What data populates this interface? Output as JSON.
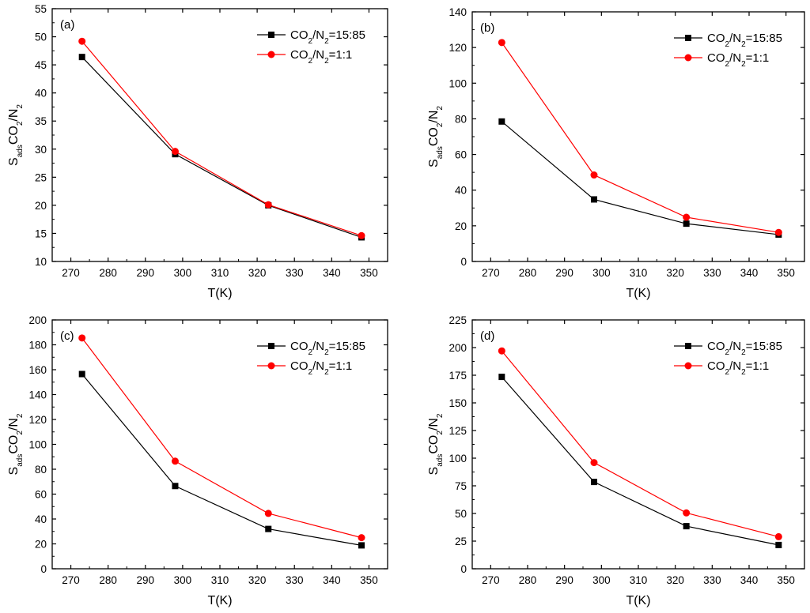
{
  "chart_data": [
    {
      "type": "line",
      "panel_label": "(a)",
      "xlabel": "T(K)",
      "ylabel": {
        "main": "S",
        "sub": "ads",
        "rest": "CO",
        "sub2": "2",
        "rest2": "/N",
        "sub3": "2"
      },
      "xlim": [
        265,
        355
      ],
      "ylim": [
        10,
        55
      ],
      "xticks": [
        270,
        280,
        290,
        300,
        310,
        320,
        330,
        340,
        350
      ],
      "yticks": [
        10,
        15,
        20,
        25,
        30,
        35,
        40,
        45,
        50,
        55
      ],
      "legend_position": "top-right",
      "series": [
        {
          "name": "CO2/N2=15:85",
          "marker": "square",
          "color": "#000000",
          "x": [
            273,
            298,
            323,
            348
          ],
          "y": [
            46.4,
            29.1,
            20.0,
            14.3
          ]
        },
        {
          "name": "CO2/N2=1:1",
          "marker": "circle",
          "color": "#ff0000",
          "x": [
            273,
            298,
            323,
            348
          ],
          "y": [
            49.2,
            29.6,
            20.1,
            14.6
          ]
        }
      ]
    },
    {
      "type": "line",
      "panel_label": "(b)",
      "xlabel": "T(K)",
      "ylabel": {
        "main": "S",
        "sub": "ads",
        "rest": "CO",
        "sub2": "2",
        "rest2": "/N",
        "sub3": "2"
      },
      "xlim": [
        265,
        355
      ],
      "ylim": [
        0,
        140
      ],
      "xticks": [
        270,
        280,
        290,
        300,
        310,
        320,
        330,
        340,
        350
      ],
      "yticks": [
        0,
        20,
        40,
        60,
        80,
        100,
        120,
        140
      ],
      "legend_position": "top-right",
      "series": [
        {
          "name": "CO2/N2=15:85",
          "marker": "square",
          "color": "#000000",
          "x": [
            273,
            298,
            323,
            348
          ],
          "y": [
            78.5,
            34.8,
            21.2,
            15.1
          ]
        },
        {
          "name": "CO2/N2=1:1",
          "marker": "circle",
          "color": "#ff0000",
          "x": [
            273,
            298,
            323,
            348
          ],
          "y": [
            122.8,
            48.5,
            24.8,
            16.3
          ]
        }
      ]
    },
    {
      "type": "line",
      "panel_label": "(c)",
      "xlabel": "T(K)",
      "ylabel": {
        "main": "S",
        "sub": "ads",
        "rest": "CO",
        "sub2": "2",
        "rest2": "/N",
        "sub3": "2"
      },
      "xlim": [
        265,
        355
      ],
      "ylim": [
        0,
        200
      ],
      "xticks": [
        270,
        280,
        290,
        300,
        310,
        320,
        330,
        340,
        350
      ],
      "yticks": [
        0,
        20,
        40,
        60,
        80,
        100,
        120,
        140,
        160,
        180,
        200
      ],
      "legend_position": "top-right",
      "series": [
        {
          "name": "CO2/N2=15:85",
          "marker": "square",
          "color": "#000000",
          "x": [
            273,
            298,
            323,
            348
          ],
          "y": [
            156.5,
            66.5,
            32.0,
            18.8
          ]
        },
        {
          "name": "CO2/N2=1:1",
          "marker": "circle",
          "color": "#ff0000",
          "x": [
            273,
            298,
            323,
            348
          ],
          "y": [
            185.5,
            86.5,
            44.5,
            25.0
          ]
        }
      ]
    },
    {
      "type": "line",
      "panel_label": "(d)",
      "xlabel": "T(K)",
      "ylabel": {
        "main": "S",
        "sub": "ads",
        "rest": "CO",
        "sub2": "2",
        "rest2": "/N",
        "sub3": "2"
      },
      "xlim": [
        265,
        355
      ],
      "ylim": [
        0,
        225
      ],
      "xticks": [
        270,
        280,
        290,
        300,
        310,
        320,
        330,
        340,
        350
      ],
      "yticks": [
        0,
        25,
        50,
        75,
        100,
        125,
        150,
        175,
        200,
        225
      ],
      "legend_position": "top-right",
      "series": [
        {
          "name": "CO2/N2=15:85",
          "marker": "square",
          "color": "#000000",
          "x": [
            273,
            298,
            323,
            348
          ],
          "y": [
            173.5,
            78.5,
            38.5,
            21.5
          ]
        },
        {
          "name": "CO2/N2=1:1",
          "marker": "circle",
          "color": "#ff0000",
          "x": [
            273,
            298,
            323,
            348
          ],
          "y": [
            197.0,
            96.0,
            50.5,
            29.0
          ]
        }
      ]
    }
  ]
}
